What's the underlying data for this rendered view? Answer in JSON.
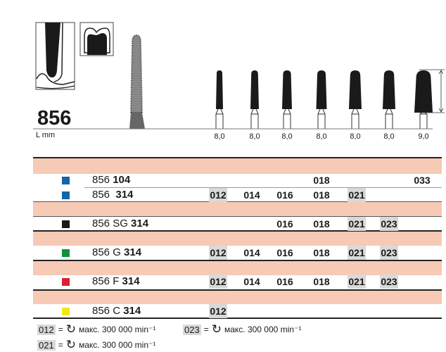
{
  "product": {
    "number": "856",
    "length_label": "L mm"
  },
  "lengths": [
    "8,0",
    "8,0",
    "8,0",
    "8,0",
    "8,0",
    "8,0",
    "9,0"
  ],
  "colors": {
    "blue": "#1565a8",
    "black": "#1a1a1a",
    "green": "#0f9140",
    "red": "#d8222f",
    "yellow": "#f4e61c",
    "band": "#f6cab5",
    "highlight": "#d9d9d9"
  },
  "rows": [
    {
      "color": "#1565a8",
      "prefix": "856",
      "suffix": "104",
      "sizes": [
        "",
        "",
        "",
        "018",
        "",
        "",
        "033"
      ],
      "highlight": [
        false,
        false,
        false,
        false,
        false,
        false,
        false
      ]
    },
    {
      "color": "#1565a8",
      "prefix": "856 ",
      "suffix": "314",
      "sizes": [
        "012",
        "014",
        "016",
        "018",
        "021",
        "",
        ""
      ],
      "highlight": [
        true,
        false,
        false,
        false,
        true,
        false,
        false
      ]
    },
    {
      "color": "#1a1a1a",
      "prefix": "856 SG",
      "suffix": "314",
      "sizes": [
        "",
        "",
        "016",
        "018",
        "021",
        "023",
        ""
      ],
      "highlight": [
        false,
        false,
        false,
        false,
        true,
        true,
        false
      ]
    },
    {
      "color": "#0f9140",
      "prefix": "856 G",
      "suffix": "314",
      "sizes": [
        "012",
        "014",
        "016",
        "018",
        "021",
        "023",
        ""
      ],
      "highlight": [
        true,
        false,
        false,
        false,
        true,
        true,
        false
      ]
    },
    {
      "color": "#d8222f",
      "prefix": "856 F",
      "suffix": "314",
      "sizes": [
        "012",
        "014",
        "016",
        "018",
        "021",
        "023",
        ""
      ],
      "highlight": [
        true,
        false,
        false,
        false,
        true,
        true,
        false
      ]
    },
    {
      "color": "#f4e61c",
      "prefix": "856 C",
      "suffix": "314",
      "sizes": [
        "012",
        "",
        "",
        "",
        "",
        "",
        ""
      ],
      "highlight": [
        true,
        false,
        false,
        false,
        false,
        false,
        false
      ]
    }
  ],
  "legend": [
    {
      "code": "012",
      "eq": "=",
      "text": "макс. 300 000 min⁻¹",
      "icon": "rotation-icon"
    },
    {
      "code": "023",
      "eq": "=",
      "text": "макс. 300 000 min⁻¹",
      "icon": "rotation-icon"
    },
    {
      "code": "021",
      "eq": "=",
      "text": "макс. 300 000 min⁻¹",
      "icon": "rotation-icon"
    }
  ]
}
